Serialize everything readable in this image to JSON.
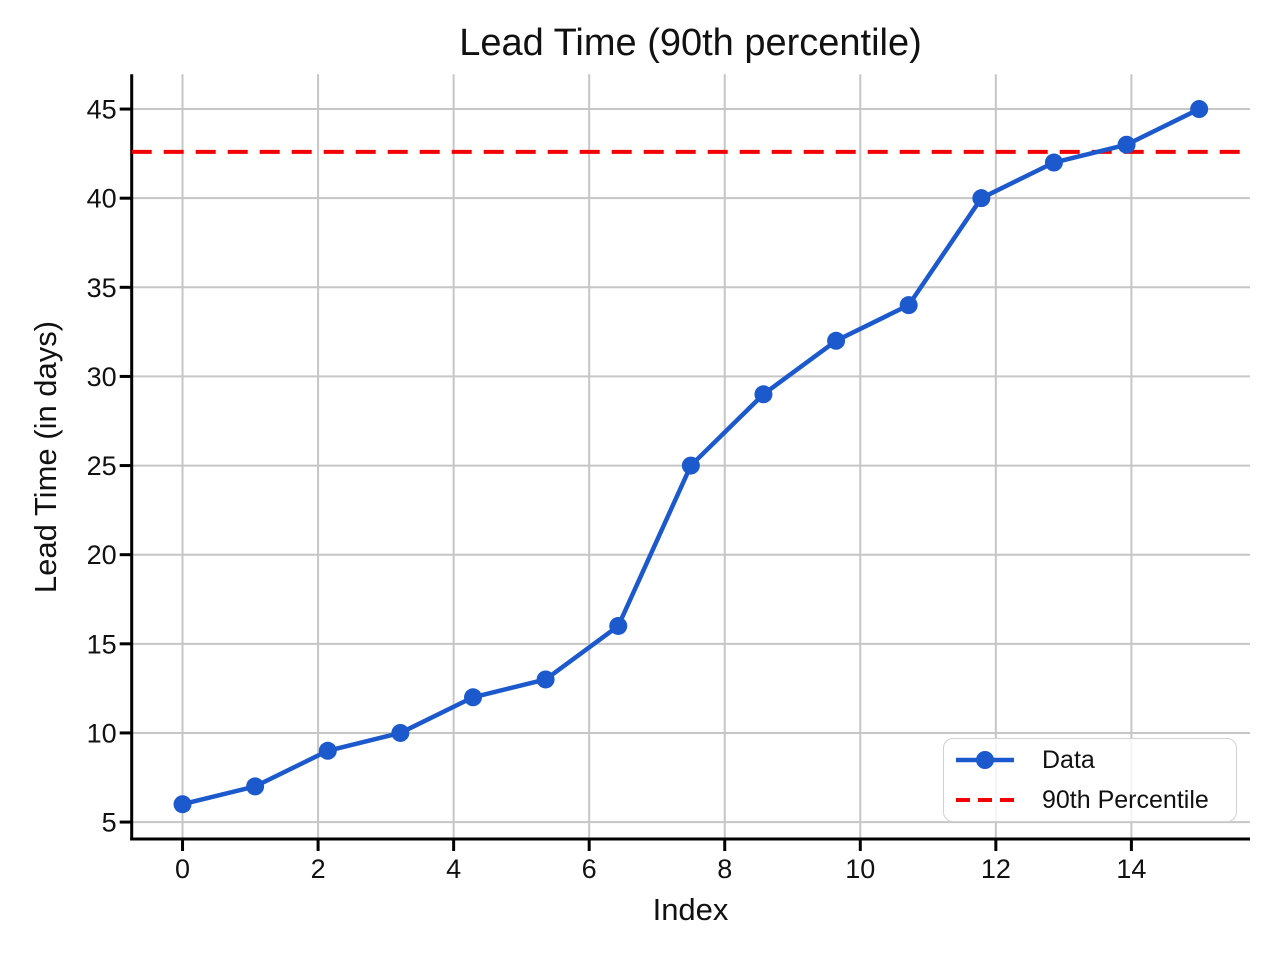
{
  "chart_data": {
    "type": "line",
    "title": "Lead Time (90th percentile)",
    "xlabel": "Index",
    "ylabel": "Lead Time (in days)",
    "x": [
      0,
      1.071,
      2.143,
      3.214,
      4.286,
      5.357,
      6.429,
      7.5,
      8.571,
      9.643,
      10.714,
      11.786,
      12.857,
      13.929,
      15
    ],
    "series": [
      {
        "name": "Data",
        "color": "#1b59cd",
        "marker": "circle",
        "values": [
          6,
          7,
          9,
          10,
          12,
          13,
          16,
          25,
          29,
          32,
          34,
          40,
          42,
          43,
          45
        ]
      }
    ],
    "percentile_line": {
      "label": "90th Percentile",
      "value": 42.6,
      "color": "#f40000",
      "style": "dashed"
    },
    "xticks": [
      0,
      2,
      4,
      6,
      8,
      10,
      12,
      14
    ],
    "yticks": [
      5,
      10,
      15,
      20,
      25,
      30,
      35,
      40,
      45
    ],
    "xlim": [
      -0.75,
      15.75
    ],
    "ylim": [
      4.05,
      46.95
    ],
    "grid": true,
    "grid_color": "#c6c6c6",
    "axis_color": "#000000",
    "tick_label_color": "#111111",
    "legend_position": "lower right"
  }
}
